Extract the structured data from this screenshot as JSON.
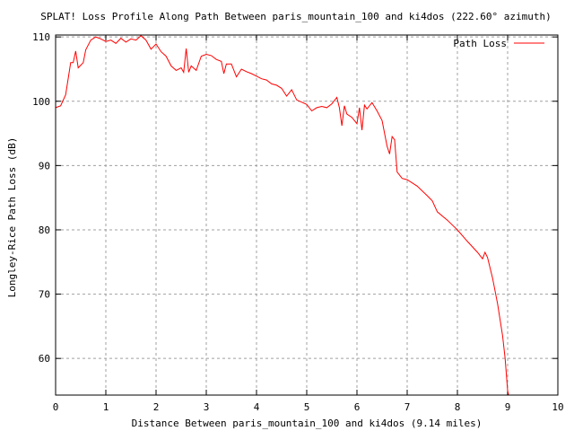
{
  "chart_data": {
    "type": "line",
    "title": "SPLAT! Loss Profile Along Path Between paris_mountain_100 and ki4dos (222.60° azimuth)",
    "xlabel": "Distance Between paris_mountain_100 and ki4dos (9.14 miles)",
    "ylabel": "Longley-Rice Path Loss (dB)",
    "xlim": [
      0,
      10
    ],
    "ylim": [
      54.3,
      110.3
    ],
    "xticks": [
      "0",
      "1",
      "2",
      "3",
      "4",
      "5",
      "6",
      "7",
      "8",
      "9",
      "10"
    ],
    "yticks": [
      "60",
      "70",
      "80",
      "90",
      "100",
      "110"
    ],
    "grid": true,
    "legend": {
      "position": "top-right",
      "entries": [
        "Path Loss"
      ]
    },
    "series": [
      {
        "name": "Path Loss",
        "color": "#ff0000",
        "x": [
          0,
          0.1,
          0.2,
          0.3,
          0.35,
          0.4,
          0.45,
          0.55,
          0.6,
          0.7,
          0.8,
          0.9,
          1.0,
          1.1,
          1.2,
          1.3,
          1.4,
          1.5,
          1.6,
          1.7,
          1.8,
          1.9,
          2.0,
          2.1,
          2.2,
          2.3,
          2.4,
          2.5,
          2.55,
          2.6,
          2.65,
          2.7,
          2.8,
          2.9,
          3.0,
          3.1,
          3.2,
          3.3,
          3.35,
          3.4,
          3.5,
          3.6,
          3.7,
          3.8,
          3.9,
          4.0,
          4.1,
          4.2,
          4.3,
          4.4,
          4.5,
          4.6,
          4.7,
          4.8,
          5.0,
          5.1,
          5.2,
          5.3,
          5.4,
          5.5,
          5.6,
          5.65,
          5.7,
          5.75,
          5.8,
          5.9,
          6.0,
          6.05,
          6.1,
          6.15,
          6.2,
          6.3,
          6.4,
          6.5,
          6.6,
          6.65,
          6.7,
          6.75,
          6.8,
          6.9,
          7.0,
          7.2,
          7.4,
          7.5,
          7.6,
          7.8,
          8.0,
          8.2,
          8.4,
          8.5,
          8.55,
          8.6,
          8.7,
          8.8,
          8.9,
          8.95,
          9.0,
          9.02
        ],
        "y": [
          99,
          99.3,
          101,
          106,
          106,
          107.8,
          105.2,
          106,
          108,
          109.5,
          110,
          109.7,
          109.3,
          109.5,
          109,
          109.8,
          109.2,
          109.7,
          109.5,
          110.2,
          109.5,
          108.1,
          108.9,
          107.7,
          107,
          105.5,
          104.8,
          105.2,
          104.5,
          108.2,
          104.5,
          105.5,
          104.8,
          107,
          107.3,
          107.1,
          106.5,
          106.2,
          104.3,
          105.8,
          105.8,
          103.8,
          105,
          104.6,
          104.3,
          103.9,
          103.5,
          103.3,
          102.7,
          102.5,
          102,
          100.8,
          101.8,
          100.2,
          99.5,
          98.5,
          99,
          99.2,
          99,
          99.6,
          100.6,
          99,
          96.2,
          99.3,
          98,
          97.5,
          96.5,
          99,
          95.5,
          99.4,
          98.8,
          99.8,
          98.5,
          97,
          93,
          91.8,
          94.5,
          94,
          89,
          88,
          87.8,
          86.8,
          85.3,
          84.5,
          82.8,
          81.5,
          80,
          78.2,
          76.5,
          75.5,
          76.5,
          75.7,
          72.5,
          68.5,
          63.5,
          60,
          55,
          54.3
        ]
      }
    ]
  }
}
